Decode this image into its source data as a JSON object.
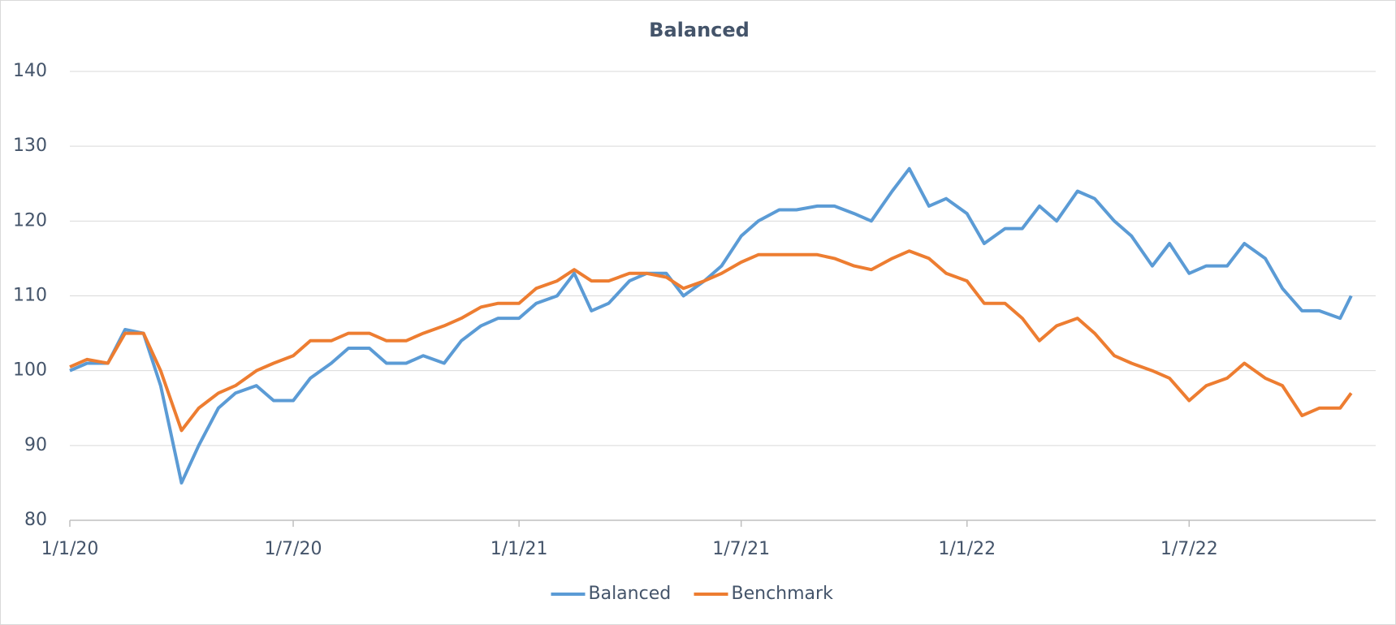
{
  "chart_data": {
    "type": "line",
    "title": "Balanced",
    "x": [
      "1/1/20",
      "15/1/20",
      "1/2/20",
      "15/2/20",
      "1/3/20",
      "15/3/20",
      "1/4/20",
      "15/4/20",
      "1/5/20",
      "15/5/20",
      "1/6/20",
      "15/6/20",
      "1/7/20",
      "15/7/20",
      "1/8/20",
      "15/8/20",
      "1/9/20",
      "15/9/20",
      "1/10/20",
      "15/10/20",
      "1/11/20",
      "15/11/20",
      "1/12/20",
      "15/12/20",
      "1/1/21",
      "15/1/21",
      "1/2/21",
      "15/2/21",
      "1/3/21",
      "15/3/21",
      "1/4/21",
      "15/4/21",
      "1/5/21",
      "15/5/21",
      "1/6/21",
      "15/6/21",
      "1/7/21",
      "15/7/21",
      "1/8/21",
      "15/8/21",
      "1/9/21",
      "15/9/21",
      "1/10/21",
      "15/10/21",
      "1/11/21",
      "15/11/21",
      "1/12/21",
      "15/12/21",
      "1/1/22",
      "15/1/22",
      "1/2/22",
      "15/2/22",
      "1/3/22",
      "15/3/22",
      "1/4/22",
      "15/4/22",
      "1/5/22",
      "15/5/22",
      "1/6/22",
      "15/6/22",
      "1/7/22",
      "15/7/22",
      "1/8/22",
      "15/8/22",
      "1/9/22",
      "15/9/22",
      "1/10/22",
      "15/10/22",
      "1/11/22",
      "10/11/22"
    ],
    "series": [
      {
        "name": "Balanced",
        "color": "#5b9bd5",
        "values": [
          100,
          101,
          101,
          105.5,
          105,
          98,
          85,
          90,
          95,
          97,
          98,
          96,
          96,
          99,
          101,
          103,
          103,
          101,
          101,
          102,
          101,
          104,
          106,
          107,
          107,
          109,
          110,
          113,
          108,
          109,
          112,
          113,
          113,
          110,
          112,
          114,
          118,
          120,
          121.5,
          121.5,
          122,
          122,
          121,
          120,
          124,
          127,
          122,
          123,
          121,
          117,
          119,
          119,
          122,
          120,
          124,
          123,
          120,
          118,
          114,
          117,
          113,
          114,
          114,
          117,
          115,
          111,
          108,
          108,
          107,
          110
        ]
      },
      {
        "name": "Benchmark",
        "color": "#ed7d31",
        "values": [
          100.5,
          101.5,
          101,
          105,
          105,
          100,
          92,
          95,
          97,
          98,
          100,
          101,
          102,
          104,
          104,
          105,
          105,
          104,
          104,
          105,
          106,
          107,
          108.5,
          109,
          109,
          111,
          112,
          113.5,
          112,
          112,
          113,
          113,
          112.5,
          111,
          112,
          113,
          114.5,
          115.5,
          115.5,
          115.5,
          115.5,
          115,
          114,
          113.5,
          115,
          116,
          115,
          113,
          112,
          109,
          109,
          107,
          104,
          106,
          107,
          105,
          102,
          101,
          100,
          99,
          96,
          98,
          99,
          101,
          99,
          98,
          94,
          95,
          95,
          97
        ]
      }
    ],
    "xlim": [
      "1/1/20",
      "30/11/22"
    ],
    "xticks": [
      "1/1/20",
      "1/7/20",
      "1/1/21",
      "1/7/21",
      "1/1/22",
      "1/7/22"
    ],
    "ylim": [
      80,
      140
    ],
    "yticks": [
      80,
      90,
      100,
      110,
      120,
      130,
      140
    ],
    "grid": true,
    "legend": "bottom"
  }
}
